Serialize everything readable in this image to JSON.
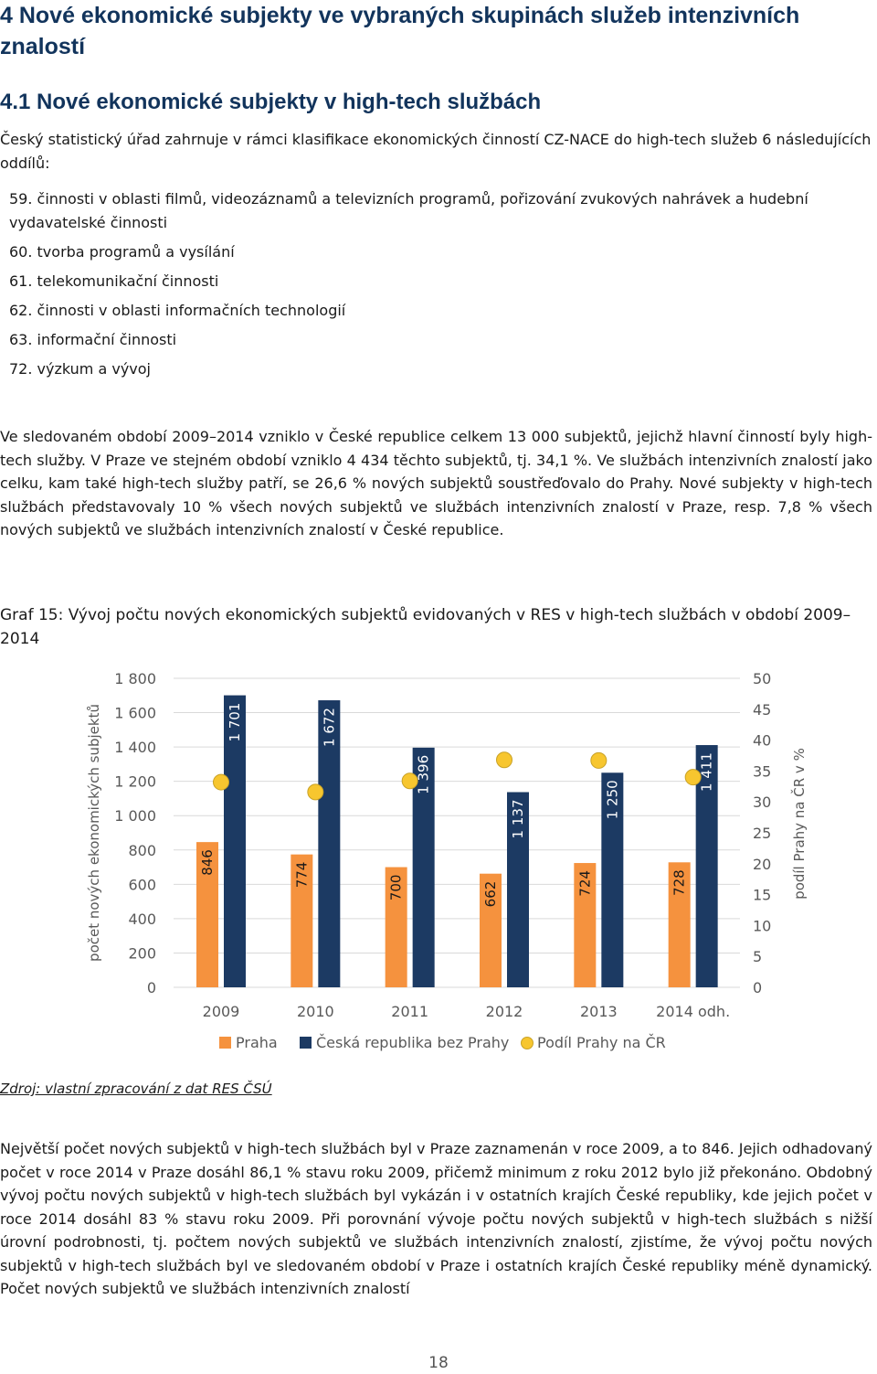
{
  "heading1": "4 Nové ekonomické subjekty ve vybraných skupinách služeb intenzivních znalostí",
  "heading2": "4.1 Nové ekonomické subjekty v high-tech službách",
  "intro": "Český statistický úřad zahrnuje v rámci klasifikace ekonomických činností CZ-NACE do high-tech služeb 6 následujících oddílů:",
  "sections": [
    "59. činnosti v oblasti filmů, videozáznamů a televizních programů, pořizování zvukových nahrávek a hudební vydavatelské činnosti",
    "60. tvorba programů a vysílání",
    "61. telekomunikační činnosti",
    "62. činnosti v oblasti informačních technologií",
    "63. informační činnosti",
    "72. výzkum a vývoj"
  ],
  "paragraph1": "Ve sledovaném období 2009–2014 vzniklo v České republice celkem 13 000 subjektů, jejichž hlavní činností byly high-tech služby. V Praze ve stejném období vzniklo 4 434 těchto subjektů, tj. 34,1 %. Ve službách intenzivních znalostí jako celku, kam také high-tech služby patří, se 26,6 % nových subjektů soustřeďovalo do Prahy. Nové subjekty v high-tech službách představovaly 10 % všech nových subjektů ve službách intenzivních znalostí v Praze, resp. 7,8 % všech nových subjektů ve službách intenzivních znalostí v České republice.",
  "chart_caption": "Graf 15: Vývoj počtu nových ekonomických subjektů evidovaných v RES v high-tech službách v období 2009–2014",
  "source": "Zdroj: vlastní zpracování z dat RES ČSÚ",
  "paragraph2": "Největší počet nových subjektů v high-tech službách byl v Praze zaznamenán v roce 2009, a to 846. Jejich odhadovaný počet v roce 2014 v Praze dosáhl 86,1 % stavu roku 2009, přičemž minimum z roku 2012 bylo již překonáno. Obdobný vývoj počtu nových subjektů v high-tech službách byl vykázán i v ostatních krajích České republiky, kde jejich počet v roce 2014 dosáhl 83 % stavu roku 2009. Při porovnání vývoje počtu nových subjektů v high-tech službách s nižší úrovní podrobnosti, tj. počtem nových subjektů ve službách intenzivních znalostí, zjistíme, že vývoj počtu nových subjektů v high-tech službách byl ve sledovaném období v Praze i ostatních krajích České republiky méně dynamický. Počet nových subjektů ve službách intenzivních znalostí",
  "page_number": "18",
  "chart_data": {
    "type": "bar",
    "categories": [
      "2009",
      "2010",
      "2011",
      "2012",
      "2013",
      "2014 odh."
    ],
    "series": [
      {
        "name": "Praha",
        "values": [
          846,
          774,
          700,
          662,
          724,
          728
        ],
        "labels": [
          "846",
          "774",
          "700",
          "662",
          "724",
          "728"
        ],
        "color": "#f5923e"
      },
      {
        "name": "Česká republika bez Prahy",
        "values": [
          1701,
          1672,
          1396,
          1137,
          1250,
          1411
        ],
        "labels": [
          "1 701",
          "1 672",
          "1 396",
          "1 137",
          "1 250",
          "1 411"
        ],
        "color": "#1c3a63"
      },
      {
        "name": "Podíl Prahy na ČR",
        "axis": "right",
        "values": [
          33.2,
          31.6,
          33.4,
          36.8,
          36.7,
          34.0
        ],
        "color": "#f7c62f"
      }
    ],
    "ylabel": "počet nových ekonomických subjektů",
    "y2label": "podíl Prahy na ČR v %",
    "ylim": [
      0,
      1800
    ],
    "y_ticks": [
      "0",
      "200",
      "400",
      "600",
      "800",
      "1 000",
      "1 200",
      "1 400",
      "1 600",
      "1 800"
    ],
    "y2lim": [
      0,
      50
    ],
    "y2_ticks": [
      "0",
      "5",
      "10",
      "15",
      "20",
      "25",
      "30",
      "35",
      "40",
      "45",
      "50"
    ],
    "grid": true,
    "legend": "bottom"
  }
}
